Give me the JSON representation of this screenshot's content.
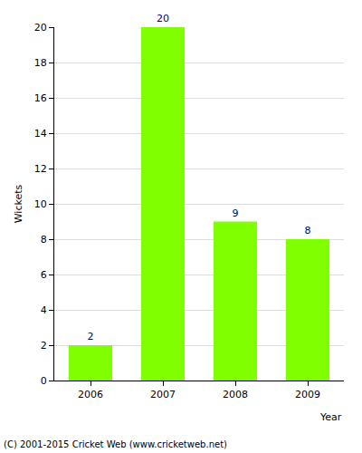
{
  "chart_data": {
    "type": "bar",
    "categories": [
      "2006",
      "2007",
      "2008",
      "2009"
    ],
    "values": [
      2,
      20,
      9,
      8
    ],
    "color": "#80ff00",
    "x_label": "Year",
    "y_label": "Wickets",
    "ylim": [
      0,
      20
    ],
    "yticks": [
      0,
      2,
      4,
      6,
      8,
      10,
      12,
      14,
      16,
      18,
      20
    ],
    "grid": true,
    "data_labels": true,
    "annotations": [
      "(C) 2001-2015 Cricket Web (www.cricketweb.net)"
    ]
  }
}
